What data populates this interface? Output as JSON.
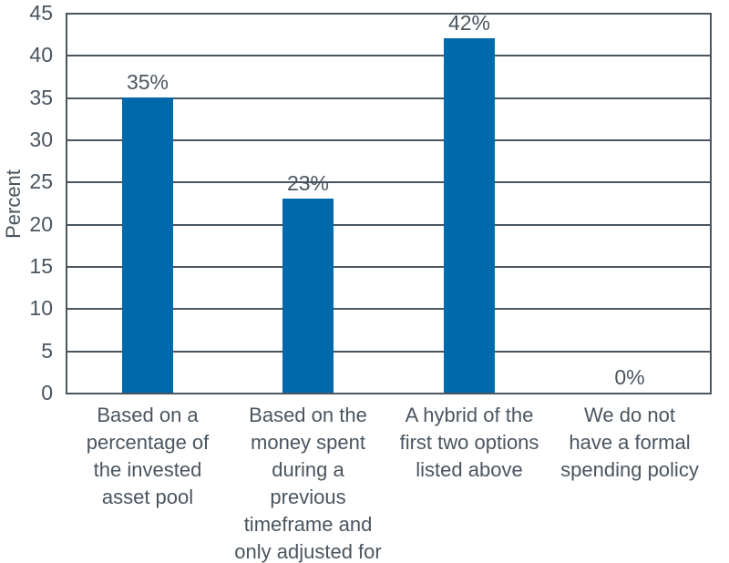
{
  "chart_data": {
    "type": "bar",
    "title": "",
    "xlabel": "",
    "ylabel": "Percent",
    "ylim": [
      0,
      45
    ],
    "yticks": [
      0,
      5,
      10,
      15,
      20,
      25,
      30,
      35,
      40,
      45
    ],
    "grid": true,
    "legend_position": "none",
    "categories": [
      "Based on a percentage of the invested asset pool",
      "Based on the money spent during a previous timeframe and only adjusted for",
      "A hybrid of the first two options listed above",
      "We do not have a formal spending policy"
    ],
    "category_label_lines": [
      "Based on a\npercentage of\nthe invested\nasset pool",
      "Based on the\nmoney spent\nduring a\nprevious\ntimeframe and\nonly adjusted for",
      "A hybrid of the\nfirst two options\nlisted above",
      "We do not\nhave a formal\nspending policy"
    ],
    "values": [
      35,
      23,
      42,
      0
    ],
    "value_labels": [
      "35%",
      "23%",
      "42%",
      "0%"
    ],
    "bar_color": "#0069AC",
    "axis_color": "#4A5560",
    "text_color": "#4A5560"
  }
}
